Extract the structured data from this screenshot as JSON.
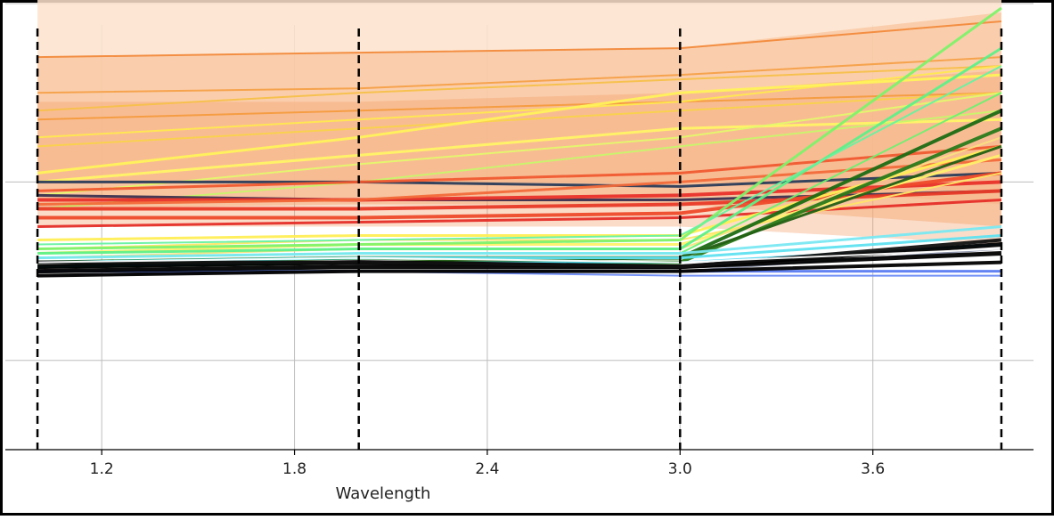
{
  "chart_data": {
    "type": "line",
    "title": "",
    "xlabel": "Wavelength",
    "ylabel": "",
    "x": [
      1.0,
      2.0,
      3.0,
      4.0
    ],
    "xlim": [
      0.9,
      4.1
    ],
    "ylim": [
      0,
      1
    ],
    "xticks": [
      1.2,
      1.8,
      2.4,
      3.0,
      3.6
    ],
    "xtick_labels": [
      "1.2",
      "1.8",
      "2.4",
      "3.0",
      "3.6"
    ],
    "yticks": [
      0.2,
      0.6,
      1.0
    ],
    "grid": true,
    "vertical_markers": [
      1.0,
      2.0,
      3.0,
      4.0
    ],
    "legend": "none",
    "bands": [
      {
        "color": "#fde3cc",
        "opacity": 0.85,
        "lower": [
          0.6,
          0.6,
          0.6,
          0.55
        ],
        "upper": [
          1.04,
          1.05,
          1.05,
          1.13
        ]
      },
      {
        "color": "#f7b98a",
        "opacity": 0.55,
        "lower": [
          0.54,
          0.55,
          0.55,
          0.5
        ],
        "upper": [
          0.88,
          0.89,
          0.9,
          0.98
        ]
      },
      {
        "color": "#f39a63",
        "opacity": 0.35,
        "lower": [
          0.5,
          0.5,
          0.5,
          0.46
        ],
        "upper": [
          0.78,
          0.78,
          0.8,
          0.85
        ]
      }
    ],
    "series": [
      {
        "color": "#f28a3c",
        "width": 2,
        "values": [
          0.88,
          0.89,
          0.9,
          0.96
        ]
      },
      {
        "color": "#f5a048",
        "width": 2,
        "values": [
          0.8,
          0.81,
          0.84,
          0.88
        ]
      },
      {
        "color": "#f7c04a",
        "width": 2,
        "values": [
          0.76,
          0.8,
          0.83,
          0.86
        ]
      },
      {
        "color": "#f49b3e",
        "width": 2,
        "values": [
          0.74,
          0.76,
          0.78,
          0.8
        ]
      },
      {
        "color": "#ffe84f",
        "width": 2,
        "values": [
          0.7,
          0.74,
          0.78,
          0.86
        ]
      },
      {
        "color": "#f9d24a",
        "width": 2,
        "values": [
          0.68,
          0.72,
          0.76,
          0.8
        ]
      },
      {
        "color": "#fff25a",
        "width": 3,
        "values": [
          0.62,
          0.7,
          0.8,
          0.84
        ]
      },
      {
        "color": "#fff466",
        "width": 3,
        "values": [
          0.6,
          0.66,
          0.72,
          0.74
        ]
      },
      {
        "color": "#c8f56a",
        "width": 2,
        "values": [
          0.54,
          0.6,
          0.68,
          0.76
        ]
      },
      {
        "color": "#e4f86b",
        "width": 2,
        "values": [
          0.57,
          0.64,
          0.7,
          0.8
        ]
      },
      {
        "color": "#2a3c5a",
        "width": 3,
        "values": [
          0.6,
          0.6,
          0.59,
          0.62
        ]
      },
      {
        "color": "#3a3050",
        "width": 3,
        "values": [
          0.57,
          0.56,
          0.56,
          0.58
        ]
      },
      {
        "color": "#e8312a",
        "width": 4,
        "values": [
          0.56,
          0.56,
          0.57,
          0.6
        ]
      },
      {
        "color": "#e83a28",
        "width": 4,
        "values": [
          0.54,
          0.54,
          0.55,
          0.58
        ]
      },
      {
        "color": "#ee4a2a",
        "width": 4,
        "values": [
          0.52,
          0.52,
          0.53,
          0.62
        ]
      },
      {
        "color": "#f05a30",
        "width": 3,
        "values": [
          0.58,
          0.6,
          0.62,
          0.68
        ]
      },
      {
        "color": "#e52e28",
        "width": 3,
        "values": [
          0.5,
          0.51,
          0.52,
          0.56
        ]
      },
      {
        "color": "#f26a3a",
        "width": 3,
        "values": [
          0.55,
          0.56,
          0.6,
          0.65
        ]
      },
      {
        "color": "#ffee55",
        "width": 3,
        "values": [
          0.47,
          0.48,
          0.48,
          0.68
        ]
      },
      {
        "color": "#fff06a",
        "width": 3,
        "values": [
          0.44,
          0.46,
          0.46,
          0.66
        ]
      },
      {
        "color": "#ffe566",
        "width": 2,
        "values": [
          0.45,
          0.47,
          0.47,
          0.62
        ]
      },
      {
        "color": "#f9e080",
        "width": 2,
        "values": [
          0.43,
          0.45,
          0.45,
          0.7
        ]
      },
      {
        "color": "#7ef26a",
        "width": 3,
        "values": [
          0.45,
          0.46,
          0.47,
          0.99
        ]
      },
      {
        "color": "#5ef088",
        "width": 3,
        "values": [
          0.44,
          0.45,
          0.45,
          0.9
        ]
      },
      {
        "color": "#66f2a0",
        "width": 2,
        "values": [
          0.46,
          0.47,
          0.48,
          0.86
        ]
      },
      {
        "color": "#6ef070",
        "width": 2,
        "values": [
          0.43,
          0.44,
          0.44,
          0.8
        ]
      },
      {
        "color": "#1d6b14",
        "width": 4,
        "values": [
          0.42,
          0.43,
          0.43,
          0.76
        ]
      },
      {
        "color": "#2a7a1a",
        "width": 4,
        "values": [
          0.41,
          0.42,
          0.42,
          0.72
        ]
      },
      {
        "color": "#235f14",
        "width": 3,
        "values": [
          0.42,
          0.42,
          0.43,
          0.68
        ]
      },
      {
        "color": "#5fe2f0",
        "width": 3,
        "values": [
          0.42,
          0.43,
          0.43,
          0.48
        ]
      },
      {
        "color": "#7ae8f2",
        "width": 3,
        "values": [
          0.43,
          0.44,
          0.44,
          0.5
        ]
      },
      {
        "color": "#55d8f0",
        "width": 2,
        "values": [
          0.41,
          0.42,
          0.42,
          0.46
        ]
      },
      {
        "color": "#5b7cf2",
        "width": 3,
        "values": [
          0.4,
          0.4,
          0.4,
          0.4
        ]
      },
      {
        "color": "#6a8af5",
        "width": 2,
        "values": [
          0.39,
          0.4,
          0.39,
          0.39
        ]
      },
      {
        "color": "#8a90a8",
        "width": 2,
        "values": [
          0.39,
          0.4,
          0.4,
          0.45
        ]
      },
      {
        "color": "#000000",
        "width": 5,
        "values": [
          0.4,
          0.41,
          0.41,
          0.44
        ]
      },
      {
        "color": "#000000",
        "width": 5,
        "values": [
          0.41,
          0.42,
          0.41,
          0.46
        ]
      },
      {
        "color": "#000000",
        "width": 4,
        "values": [
          0.39,
          0.4,
          0.4,
          0.42
        ]
      },
      {
        "color": "#111111",
        "width": 4,
        "values": [
          0.42,
          0.42,
          0.41,
          0.47
        ]
      },
      {
        "color": "#ffffff",
        "width": 2,
        "values": [
          0.42,
          0.43,
          0.42,
          0.45
        ]
      }
    ]
  }
}
